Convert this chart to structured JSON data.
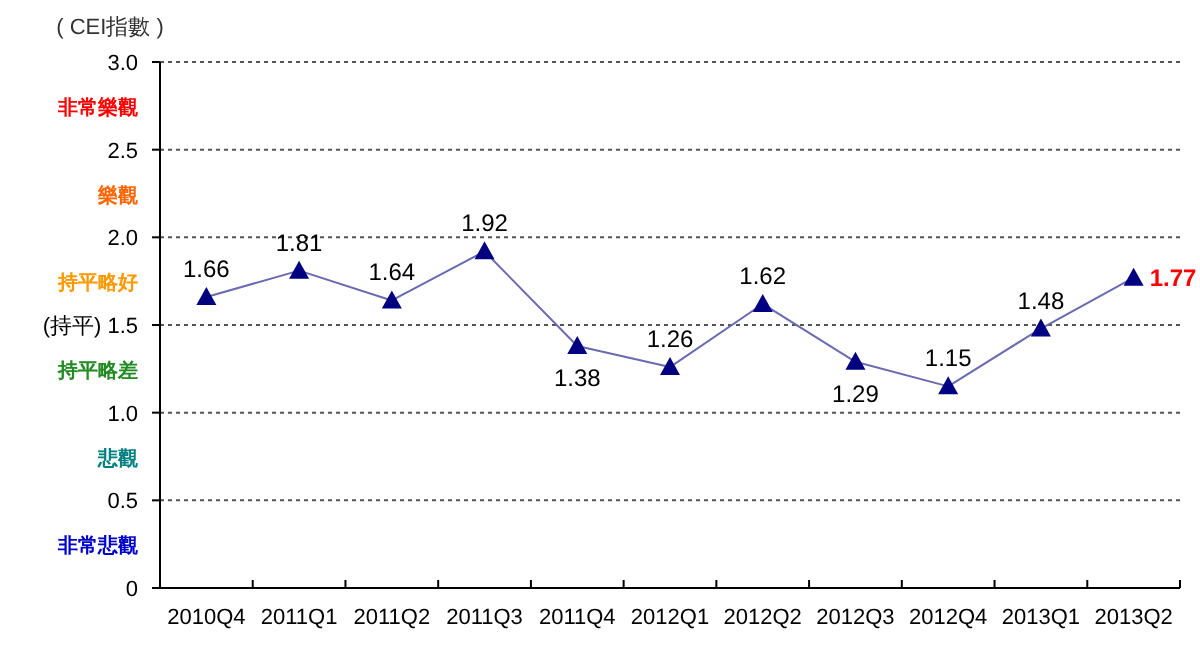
{
  "chart_data": {
    "type": "line",
    "title": "( CEI指數 )",
    "categories": [
      "2010Q4",
      "2011Q1",
      "2011Q2",
      "2011Q3",
      "2011Q4",
      "2012Q1",
      "2012Q2",
      "2012Q3",
      "2012Q4",
      "2013Q1",
      "2013Q2"
    ],
    "series": [
      {
        "color": "#000080",
        "values": [
          1.66,
          1.81,
          1.64,
          1.92,
          1.38,
          1.26,
          1.62,
          1.29,
          1.15,
          1.48,
          1.77
        ]
      }
    ],
    "ylim": [
      0,
      3.0
    ],
    "yticks": [
      {
        "value": 0,
        "label": "0"
      },
      {
        "value": 0.25,
        "label": "非常悲觀"
      },
      {
        "value": 0.5,
        "label": "0.5"
      },
      {
        "value": 0.75,
        "label": "悲觀"
      },
      {
        "value": 1.0,
        "label": "1.0"
      },
      {
        "value": 1.25,
        "label": "持平略差"
      },
      {
        "value": 1.5,
        "label": "(持平)  1.5"
      },
      {
        "value": 1.75,
        "label": "持平略好"
      },
      {
        "value": 2.0,
        "label": "2.0"
      },
      {
        "value": 2.25,
        "label": "樂觀"
      },
      {
        "value": 2.5,
        "label": "2.5"
      },
      {
        "value": 2.75,
        "label": "非常樂觀"
      },
      {
        "value": 3.0,
        "label": "3.0"
      }
    ],
    "grid": "y",
    "marker": "triangle",
    "line_style": "solid",
    "data_labels": true
  }
}
